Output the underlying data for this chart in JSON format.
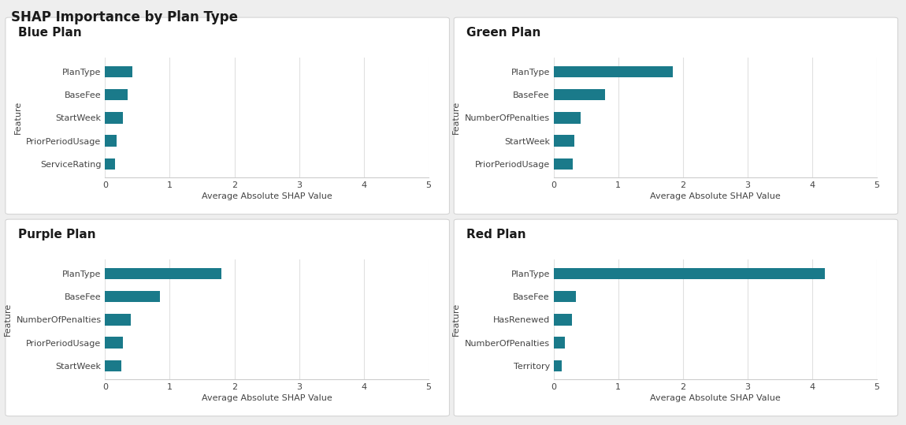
{
  "title": "SHAP Importance by Plan Type",
  "bar_color": "#1a7a8a",
  "xlim": [
    0,
    5
  ],
  "xlabel": "Average Absolute SHAP Value",
  "ylabel": "Feature",
  "subplots": [
    {
      "title": "Blue Plan",
      "features": [
        "PlanType",
        "BaseFee",
        "StartWeek",
        "PriorPeriodUsage",
        "ServiceRating"
      ],
      "values": [
        0.42,
        0.35,
        0.28,
        0.18,
        0.15
      ]
    },
    {
      "title": "Green Plan",
      "features": [
        "PlanType",
        "BaseFee",
        "NumberOfPenalties",
        "StartWeek",
        "PriorPeriodUsage"
      ],
      "values": [
        1.85,
        0.8,
        0.42,
        0.32,
        0.3
      ]
    },
    {
      "title": "Purple Plan",
      "features": [
        "PlanType",
        "BaseFee",
        "NumberOfPenalties",
        "PriorPeriodUsage",
        "StartWeek"
      ],
      "values": [
        1.8,
        0.85,
        0.4,
        0.28,
        0.25
      ]
    },
    {
      "title": "Red Plan",
      "features": [
        "PlanType",
        "BaseFee",
        "HasRenewed",
        "NumberOfPenalties",
        "Territory"
      ],
      "values": [
        4.2,
        0.35,
        0.28,
        0.18,
        0.12
      ]
    }
  ],
  "outer_bg": "#eeeeee",
  "panel_bg": "#ffffff",
  "panel_edge": "#d0d0d0",
  "title_fontsize": 12,
  "subtitle_fontsize": 11,
  "tick_fontsize": 8,
  "label_fontsize": 8
}
